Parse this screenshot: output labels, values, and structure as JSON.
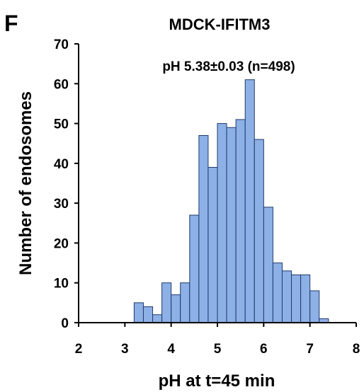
{
  "panel_label": "F",
  "chart_data": {
    "type": "bar",
    "title": "MDCK-IFITM3",
    "annotation": "pH 5.38±0.03 (n=498)",
    "xlabel": "pH at t=45 min",
    "ylabel": "Number of endosomes",
    "xlim": [
      2,
      8
    ],
    "ylim": [
      0,
      70
    ],
    "xticks": [
      2,
      3,
      4,
      5,
      6,
      7,
      8
    ],
    "yticks": [
      0,
      10,
      20,
      30,
      40,
      50,
      60,
      70
    ],
    "bin_width": 0.2,
    "bar_color": "#8db0e6",
    "bar_edge_color": "#1f3a6b",
    "bins": [
      {
        "x": 3.3,
        "value": 5
      },
      {
        "x": 3.5,
        "value": 4
      },
      {
        "x": 3.7,
        "value": 2
      },
      {
        "x": 3.9,
        "value": 10
      },
      {
        "x": 4.1,
        "value": 7
      },
      {
        "x": 4.3,
        "value": 10
      },
      {
        "x": 4.5,
        "value": 27
      },
      {
        "x": 4.7,
        "value": 47
      },
      {
        "x": 4.9,
        "value": 39
      },
      {
        "x": 5.1,
        "value": 50
      },
      {
        "x": 5.3,
        "value": 49
      },
      {
        "x": 5.5,
        "value": 51
      },
      {
        "x": 5.7,
        "value": 61
      },
      {
        "x": 5.9,
        "value": 46
      },
      {
        "x": 6.1,
        "value": 29
      },
      {
        "x": 6.3,
        "value": 15
      },
      {
        "x": 6.5,
        "value": 13
      },
      {
        "x": 6.7,
        "value": 12
      },
      {
        "x": 6.9,
        "value": 12
      },
      {
        "x": 7.1,
        "value": 8
      },
      {
        "x": 7.3,
        "value": 1
      }
    ]
  }
}
